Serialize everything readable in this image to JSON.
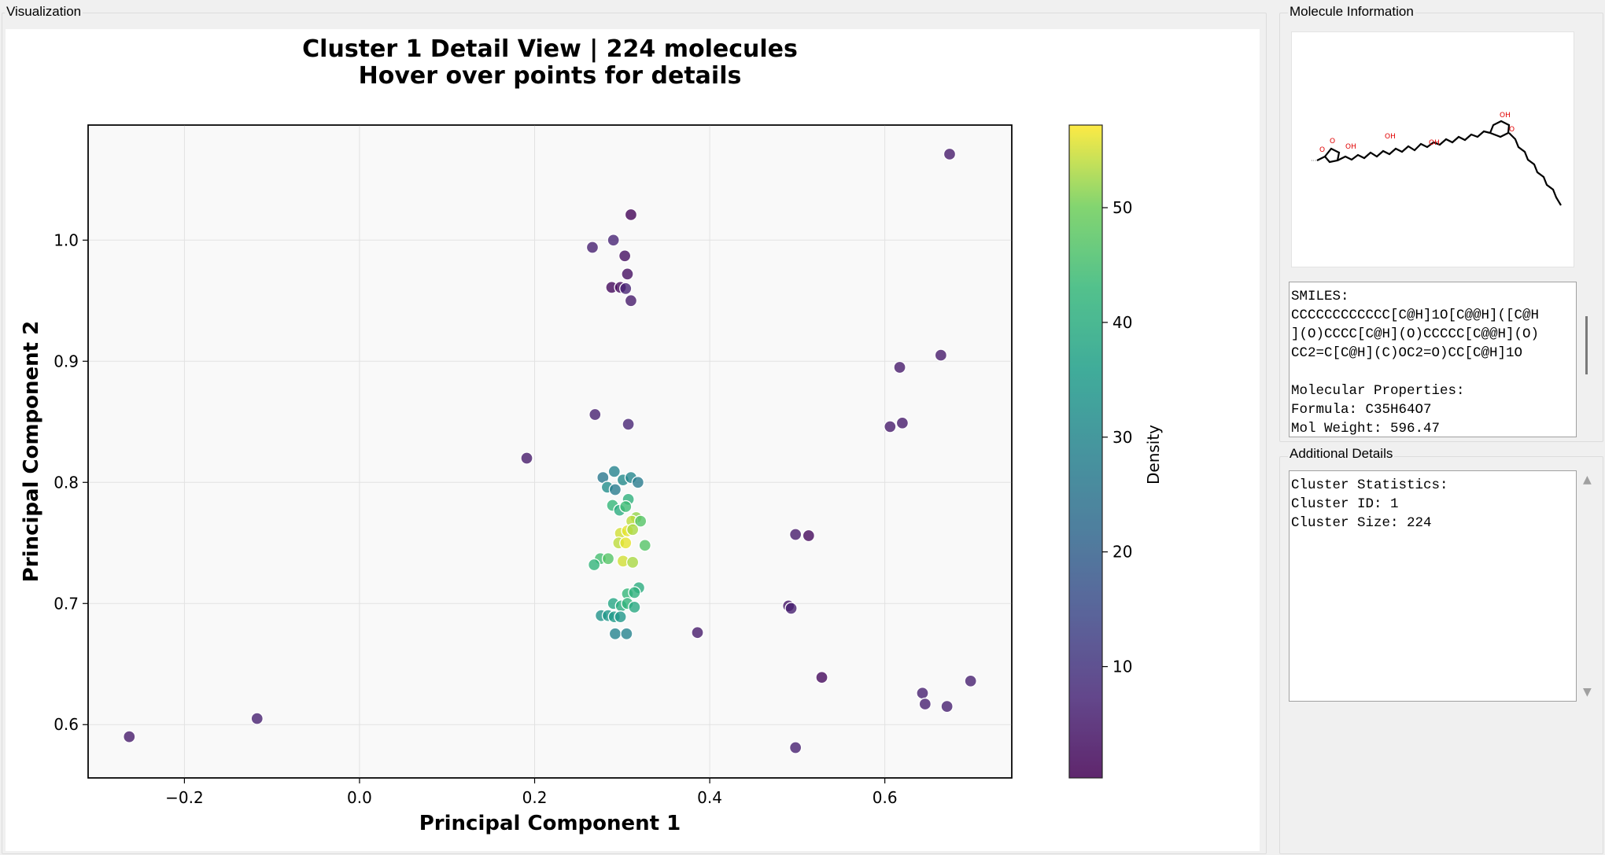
{
  "panels": {
    "visualization_title": "Visualization",
    "molecule_info_title": "Molecule Information",
    "additional_details_title": "Additional Details"
  },
  "molecule_info": {
    "text": "SMILES:\nCCCCCCCCCCCC[C@H]1O[C@@H]([C@H\n](O)CCCC[C@H](O)CCCCC[C@@H](O)\nCC2=C[C@H](C)OC2=O)CC[C@H]1O\n\nMolecular Properties:\nFormula: C35H64O7\nMol Weight: 596.47"
  },
  "additional_details": {
    "text": "Cluster Statistics:\nCluster ID: 1\nCluster Size: 224"
  },
  "chart_data": {
    "type": "scatter",
    "title": "Cluster 1 Detail View | 224 molecules",
    "subtitle": "Hover over points for details",
    "xlabel": "Principal Component 1",
    "ylabel": "Principal Component 2",
    "xlim": [
      -0.31,
      0.745
    ],
    "ylim": [
      0.556,
      1.095
    ],
    "xticks": [
      -0.2,
      0.0,
      0.2,
      0.4,
      0.6
    ],
    "xtick_labels": [
      "−0.2",
      "0.0",
      "0.2",
      "0.4",
      "0.6"
    ],
    "yticks": [
      0.6,
      0.7,
      0.8,
      0.9,
      1.0
    ],
    "ytick_labels": [
      "0.6",
      "0.7",
      "0.8",
      "0.9",
      "1.0"
    ],
    "grid": true,
    "colorbar": {
      "label": "Density",
      "colormap": "viridis",
      "range": [
        0.3,
        57.2
      ],
      "ticks": [
        10,
        20,
        30,
        40,
        50
      ],
      "tick_labels": [
        "10",
        "20",
        "30",
        "40",
        "50"
      ]
    },
    "points": [
      {
        "x": 0.674,
        "y": 1.071,
        "c": 5
      },
      {
        "x": 0.31,
        "y": 1.021,
        "c": 1
      },
      {
        "x": 0.29,
        "y": 1.0,
        "c": 7
      },
      {
        "x": 0.266,
        "y": 0.994,
        "c": 6
      },
      {
        "x": 0.303,
        "y": 0.987,
        "c": 3
      },
      {
        "x": 0.306,
        "y": 0.972,
        "c": 3
      },
      {
        "x": 0.288,
        "y": 0.961,
        "c": 2
      },
      {
        "x": 0.298,
        "y": 0.961,
        "c": 2
      },
      {
        "x": 0.304,
        "y": 0.96,
        "c": 7
      },
      {
        "x": 0.31,
        "y": 0.95,
        "c": 5
      },
      {
        "x": 0.617,
        "y": 0.895,
        "c": 5
      },
      {
        "x": 0.664,
        "y": 0.905,
        "c": 5
      },
      {
        "x": 0.269,
        "y": 0.856,
        "c": 6
      },
      {
        "x": 0.307,
        "y": 0.848,
        "c": 7
      },
      {
        "x": 0.606,
        "y": 0.846,
        "c": 5
      },
      {
        "x": 0.62,
        "y": 0.849,
        "c": 5
      },
      {
        "x": 0.191,
        "y": 0.82,
        "c": 5
      },
      {
        "x": 0.291,
        "y": 0.809,
        "c": 29
      },
      {
        "x": 0.278,
        "y": 0.804,
        "c": 26
      },
      {
        "x": 0.301,
        "y": 0.802,
        "c": 31
      },
      {
        "x": 0.31,
        "y": 0.804,
        "c": 30
      },
      {
        "x": 0.318,
        "y": 0.8,
        "c": 27
      },
      {
        "x": 0.283,
        "y": 0.796,
        "c": 32
      },
      {
        "x": 0.292,
        "y": 0.794,
        "c": 27
      },
      {
        "x": 0.307,
        "y": 0.786,
        "c": 41
      },
      {
        "x": 0.289,
        "y": 0.781,
        "c": 43
      },
      {
        "x": 0.297,
        "y": 0.777,
        "c": 40
      },
      {
        "x": 0.304,
        "y": 0.78,
        "c": 44
      },
      {
        "x": 0.316,
        "y": 0.771,
        "c": 52
      },
      {
        "x": 0.311,
        "y": 0.768,
        "c": 54
      },
      {
        "x": 0.321,
        "y": 0.768,
        "c": 47
      },
      {
        "x": 0.298,
        "y": 0.758,
        "c": 55
      },
      {
        "x": 0.306,
        "y": 0.76,
        "c": 56
      },
      {
        "x": 0.312,
        "y": 0.761,
        "c": 53
      },
      {
        "x": 0.296,
        "y": 0.75,
        "c": 54
      },
      {
        "x": 0.304,
        "y": 0.75,
        "c": 56
      },
      {
        "x": 0.326,
        "y": 0.748,
        "c": 47
      },
      {
        "x": 0.275,
        "y": 0.737,
        "c": 45
      },
      {
        "x": 0.284,
        "y": 0.737,
        "c": 47
      },
      {
        "x": 0.268,
        "y": 0.732,
        "c": 42
      },
      {
        "x": 0.301,
        "y": 0.735,
        "c": 55
      },
      {
        "x": 0.312,
        "y": 0.734,
        "c": 53
      },
      {
        "x": 0.319,
        "y": 0.713,
        "c": 40
      },
      {
        "x": 0.306,
        "y": 0.708,
        "c": 43
      },
      {
        "x": 0.314,
        "y": 0.709,
        "c": 41
      },
      {
        "x": 0.29,
        "y": 0.7,
        "c": 38
      },
      {
        "x": 0.299,
        "y": 0.698,
        "c": 40
      },
      {
        "x": 0.306,
        "y": 0.7,
        "c": 42
      },
      {
        "x": 0.314,
        "y": 0.697,
        "c": 39
      },
      {
        "x": 0.276,
        "y": 0.69,
        "c": 33
      },
      {
        "x": 0.284,
        "y": 0.69,
        "c": 34
      },
      {
        "x": 0.291,
        "y": 0.689,
        "c": 35
      },
      {
        "x": 0.298,
        "y": 0.689,
        "c": 34
      },
      {
        "x": 0.292,
        "y": 0.675,
        "c": 29
      },
      {
        "x": 0.305,
        "y": 0.675,
        "c": 29
      },
      {
        "x": 0.386,
        "y": 0.676,
        "c": 5
      },
      {
        "x": 0.498,
        "y": 0.757,
        "c": 5
      },
      {
        "x": 0.513,
        "y": 0.756,
        "c": 2
      },
      {
        "x": 0.49,
        "y": 0.698,
        "c": 4
      },
      {
        "x": 0.493,
        "y": 0.696,
        "c": 6
      },
      {
        "x": 0.528,
        "y": 0.639,
        "c": 2
      },
      {
        "x": 0.643,
        "y": 0.626,
        "c": 6
      },
      {
        "x": 0.646,
        "y": 0.617,
        "c": 6
      },
      {
        "x": 0.671,
        "y": 0.615,
        "c": 6
      },
      {
        "x": 0.698,
        "y": 0.636,
        "c": 6
      },
      {
        "x": 0.498,
        "y": 0.581,
        "c": 6
      },
      {
        "x": -0.263,
        "y": 0.59,
        "c": 5
      },
      {
        "x": -0.117,
        "y": 0.605,
        "c": 6
      }
    ]
  },
  "colors": {
    "plot_background": "#f9f9f9",
    "grid": "#e2e2e2",
    "marker_edge": "#ffffff"
  }
}
